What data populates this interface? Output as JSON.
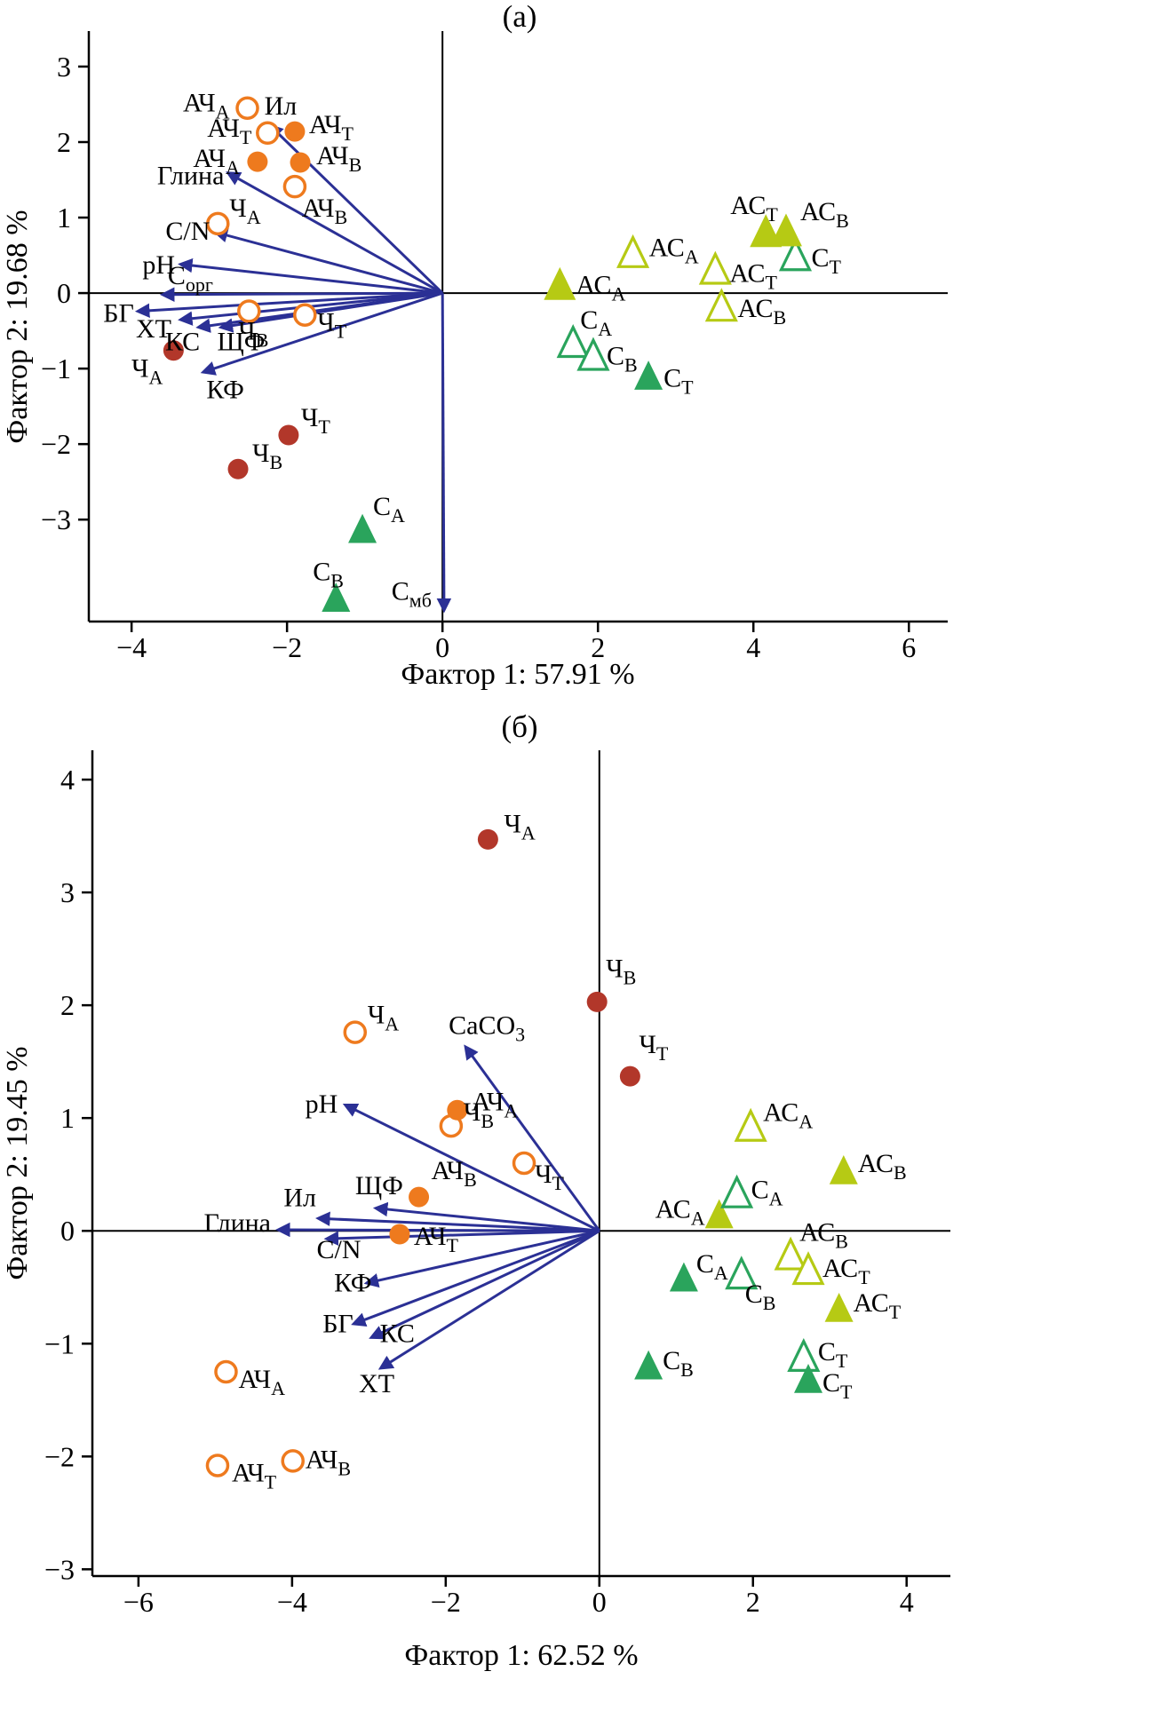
{
  "page": {
    "background": "#ffffff"
  },
  "colors": {
    "orange": "#ee7a1e",
    "dark_red": "#b2372a",
    "navy": "#2b3095",
    "yellow_green": "#b6ca14",
    "green": "#2aa45c",
    "axis": "#000000"
  },
  "chart_data": [
    {
      "type": "scatter",
      "panel_label": "(а)",
      "xlabel": "Фактор 1: 57.91 %",
      "ylabel": "Фактор 2: 19.68 %",
      "xlim": [
        -4.55,
        6.5
      ],
      "ylim": [
        -4.35,
        3.47
      ],
      "xticks": [
        -4,
        -2,
        0,
        2,
        4,
        6
      ],
      "yticks": [
        -3,
        -2,
        -1,
        0,
        1,
        2,
        3
      ],
      "grid": false,
      "legend": "none",
      "series": [
        {
          "name": "ach-filled",
          "marker": "circle",
          "filled": true,
          "color": "orange",
          "points": [
            {
              "x": -1.9,
              "y": 2.14,
              "label": "АЧ_Т",
              "dx": 16,
              "dy": 2,
              "anchor": "start"
            },
            {
              "x": -2.38,
              "y": 1.74,
              "label": "АЧ_А",
              "dx": -20,
              "dy": 6,
              "anchor": "end"
            },
            {
              "x": -1.83,
              "y": 1.73,
              "label": "АЧ_В",
              "dx": 18,
              "dy": 2,
              "anchor": "start"
            }
          ]
        },
        {
          "name": "ach-open",
          "marker": "circle",
          "filled": false,
          "color": "orange",
          "points": [
            {
              "x": -2.51,
              "y": 2.45,
              "label": "АЧ_А",
              "dx": -20,
              "dy": 4,
              "anchor": "end"
            },
            {
              "x": -2.25,
              "y": 2.12,
              "label": "АЧ_Т",
              "dx": -18,
              "dy": 4,
              "anchor": "end"
            },
            {
              "x": -1.9,
              "y": 1.41,
              "label": "АЧ_В",
              "dx": 8,
              "dy": 34,
              "anchor": "start"
            },
            {
              "x": -2.89,
              "y": 0.92,
              "label": "Ч_А",
              "dx": 13,
              "dy": -8,
              "anchor": "start"
            },
            {
              "x": -2.49,
              "y": -0.24,
              "label": "Ч_В",
              "dx": -12,
              "dy": 32,
              "anchor": "start"
            },
            {
              "x": -1.77,
              "y": -0.29,
              "label": "Ч_Т",
              "dx": 14,
              "dy": 18,
              "anchor": "start"
            }
          ]
        },
        {
          "name": "ch-filled",
          "marker": "circle",
          "filled": true,
          "color": "dark_red",
          "points": [
            {
              "x": -3.46,
              "y": -0.76,
              "label": "Ч_А",
              "dx": -12,
              "dy": 30,
              "anchor": "end"
            },
            {
              "x": -1.98,
              "y": -1.88,
              "label": "Ч_Т",
              "dx": 14,
              "dy": -10,
              "anchor": "start"
            },
            {
              "x": -2.63,
              "y": -2.33,
              "label": "Ч_В",
              "dx": 16,
              "dy": -8,
              "anchor": "start"
            }
          ]
        },
        {
          "name": "s-filled",
          "marker": "triangle",
          "filled": true,
          "color": "green",
          "points": [
            {
              "x": -1.03,
              "y": -3.15,
              "label": "С_А",
              "dx": 12,
              "dy": -18,
              "anchor": "start"
            },
            {
              "x": -1.37,
              "y": -4.06,
              "label": "С_В",
              "dx": -26,
              "dy": -22,
              "anchor": "start"
            },
            {
              "x": 2.65,
              "y": -1.12,
              "label": "С_Т",
              "dx": 17,
              "dy": 10,
              "anchor": "start"
            }
          ]
        },
        {
          "name": "s-open",
          "marker": "triangle",
          "filled": false,
          "color": "green",
          "points": [
            {
              "x": 1.68,
              "y": -0.68,
              "label": "С_А",
              "dx": 8,
              "dy": -18,
              "anchor": "start"
            },
            {
              "x": 1.94,
              "y": -0.85,
              "label": "С_В",
              "dx": 15,
              "dy": 8,
              "anchor": "start"
            },
            {
              "x": 4.54,
              "y": 0.47,
              "label": "С_Т",
              "dx": 18,
              "dy": 10,
              "anchor": "start"
            }
          ]
        },
        {
          "name": "as-filled",
          "marker": "triangle",
          "filled": true,
          "color": "yellow_green",
          "size": 18,
          "points": [
            {
              "x": 1.51,
              "y": 0.09,
              "label": "АС_А",
              "dx": 18,
              "dy": 8,
              "anchor": "start"
            },
            {
              "x": 4.16,
              "y": 0.79,
              "label": "АС_Т",
              "dx": -40,
              "dy": -22,
              "anchor": "start"
            },
            {
              "x": 4.42,
              "y": 0.8,
              "label": "АС_В",
              "dx": 16,
              "dy": -14,
              "anchor": "start"
            }
          ]
        },
        {
          "name": "as-open",
          "marker": "triangle",
          "filled": false,
          "color": "yellow_green",
          "points": [
            {
              "x": 2.45,
              "y": 0.51,
              "label": "АС_А",
              "dx": 18,
              "dy": 2,
              "anchor": "start"
            },
            {
              "x": 3.51,
              "y": 0.29,
              "label": "АС_Т",
              "dx": 16,
              "dy": 12,
              "anchor": "start"
            },
            {
              "x": 3.59,
              "y": -0.2,
              "label": "АС_В",
              "dx": 18,
              "dy": 10,
              "anchor": "start"
            }
          ]
        }
      ],
      "arrows": [
        {
          "x": -2.2,
          "y": 2.2,
          "label": "Ил",
          "dx": -8,
          "dy": -14,
          "anchor": "start"
        },
        {
          "x": -2.74,
          "y": 1.58,
          "label": "Глина",
          "dx": -6,
          "dy": 12,
          "anchor": "end"
        },
        {
          "x": -2.9,
          "y": 0.8,
          "label": "C/N",
          "dx": -8,
          "dy": 8,
          "anchor": "end"
        },
        {
          "x": -3.35,
          "y": 0.38,
          "label": "pH",
          "dx": -8,
          "dy": 10,
          "anchor": "end"
        },
        {
          "x": -3.58,
          "y": -0.02,
          "label": "С_орг",
          "dx": 4,
          "dy": -12,
          "anchor": "start"
        },
        {
          "x": -3.9,
          "y": -0.24,
          "label": "БГ",
          "dx": -6,
          "dy": 12,
          "anchor": "end"
        },
        {
          "x": -3.35,
          "y": -0.35,
          "label": "ХТ",
          "dx": -12,
          "dy": 20,
          "anchor": "end"
        },
        {
          "x": -3.12,
          "y": -0.45,
          "label": "КС",
          "dx": 0,
          "dy": 26,
          "anchor": "end"
        },
        {
          "x": -2.83,
          "y": -0.45,
          "label": "ЩФ",
          "dx": -6,
          "dy": 26,
          "anchor": "start"
        },
        {
          "x": -3.06,
          "y": -1.04,
          "label": "КФ",
          "dx": 2,
          "dy": 30,
          "anchor": "start"
        },
        {
          "x": 0.02,
          "y": -4.18,
          "label": "С_мб",
          "dx": -14,
          "dy": -10,
          "anchor": "end"
        }
      ]
    },
    {
      "type": "scatter",
      "panel_label": "(б)",
      "xlabel": "Фактор 1: 62.52 %",
      "ylabel": "Фактор 2: 19.45 %",
      "xlim": [
        -6.6,
        4.57
      ],
      "ylim": [
        -3.06,
        4.26
      ],
      "xticks": [
        -6,
        -4,
        -2,
        0,
        2,
        4
      ],
      "yticks": [
        -3,
        -2,
        -1,
        0,
        1,
        2,
        3,
        4
      ],
      "grid": false,
      "legend": "none",
      "series": [
        {
          "name": "ch-filled",
          "marker": "circle",
          "filled": true,
          "color": "dark_red",
          "points": [
            {
              "x": -1.45,
              "y": 3.47,
              "label": "Ч_А",
              "dx": 18,
              "dy": -8,
              "anchor": "start"
            },
            {
              "x": -0.03,
              "y": 2.03,
              "label": "Ч_В",
              "dx": 10,
              "dy": -28,
              "anchor": "start"
            },
            {
              "x": 0.4,
              "y": 1.37,
              "label": "Ч_Т",
              "dx": 10,
              "dy": -26,
              "anchor": "start"
            }
          ]
        },
        {
          "name": "ch-open",
          "marker": "circle",
          "filled": false,
          "color": "orange",
          "points": [
            {
              "x": -3.18,
              "y": 1.76,
              "label": "Ч_А",
              "dx": 14,
              "dy": -10,
              "anchor": "start"
            },
            {
              "x": -1.93,
              "y": 0.93,
              "label": "Ч_В",
              "dx": 14,
              "dy": -6,
              "anchor": "start"
            },
            {
              "x": -0.98,
              "y": 0.6,
              "label": "Ч_Т",
              "dx": 12,
              "dy": 22,
              "anchor": "start"
            },
            {
              "x": -4.86,
              "y": -1.25,
              "label": "АЧ_А",
              "dx": 14,
              "dy": 18,
              "anchor": "start"
            },
            {
              "x": -4.97,
              "y": -2.08,
              "label": "АЧ_Т",
              "dx": 16,
              "dy": 18,
              "anchor": "start"
            },
            {
              "x": -3.99,
              "y": -2.04,
              "label": "АЧ_В",
              "dx": 14,
              "dy": 8,
              "anchor": "start"
            }
          ]
        },
        {
          "name": "ach-filled",
          "marker": "circle",
          "filled": true,
          "color": "orange",
          "points": [
            {
              "x": -1.85,
              "y": 1.07,
              "label": "АЧ_А",
              "dx": 16,
              "dy": 0,
              "anchor": "start"
            },
            {
              "x": -2.35,
              "y": 0.3,
              "label": "АЧ_В",
              "dx": 14,
              "dy": -20,
              "anchor": "start"
            },
            {
              "x": -2.6,
              "y": -0.03,
              "label": "АЧ_Т",
              "dx": 16,
              "dy": 12,
              "anchor": "start"
            }
          ]
        },
        {
          "name": "as-filled",
          "marker": "triangle",
          "filled": true,
          "color": "yellow_green",
          "points": [
            {
              "x": 1.56,
              "y": 0.13,
              "label": "АС_А",
              "dx": -16,
              "dy": 2,
              "anchor": "end"
            },
            {
              "x": 3.18,
              "y": 0.52,
              "label": "АС_В",
              "dx": 16,
              "dy": 0,
              "anchor": "start"
            },
            {
              "x": 3.12,
              "y": -0.7,
              "label": "АС_Т",
              "dx": 16,
              "dy": 2,
              "anchor": "start"
            }
          ]
        },
        {
          "name": "as-open",
          "marker": "triangle",
          "filled": false,
          "color": "yellow_green",
          "points": [
            {
              "x": 1.97,
              "y": 0.91,
              "label": "АС_А",
              "dx": 14,
              "dy": -8,
              "anchor": "start"
            },
            {
              "x": 2.49,
              "y": -0.23,
              "label": "АС_В",
              "dx": 10,
              "dy": -18,
              "anchor": "start"
            },
            {
              "x": 2.72,
              "y": -0.36,
              "label": "АС_Т",
              "dx": 16,
              "dy": 6,
              "anchor": "start"
            }
          ]
        },
        {
          "name": "s-open",
          "marker": "triangle",
          "filled": false,
          "color": "green",
          "points": [
            {
              "x": 1.79,
              "y": 0.32,
              "label": "С_А",
              "dx": 16,
              "dy": 4,
              "anchor": "start"
            },
            {
              "x": 1.85,
              "y": -0.4,
              "label": "С_В",
              "dx": 4,
              "dy": 30,
              "anchor": "start"
            },
            {
              "x": 2.66,
              "y": -1.13,
              "label": "С_Т",
              "dx": 16,
              "dy": 2,
              "anchor": "start"
            }
          ]
        },
        {
          "name": "s-filled",
          "marker": "triangle",
          "filled": true,
          "color": "green",
          "points": [
            {
              "x": 1.1,
              "y": -0.43,
              "label": "С_А",
              "dx": 14,
              "dy": -8,
              "anchor": "start"
            },
            {
              "x": 0.64,
              "y": -1.21,
              "label": "С_В",
              "dx": 16,
              "dy": 2,
              "anchor": "start"
            },
            {
              "x": 2.72,
              "y": -1.33,
              "label": "С_Т",
              "dx": 16,
              "dy": 12,
              "anchor": "start"
            }
          ]
        }
      ],
      "arrows": [
        {
          "x": -1.73,
          "y": 1.62,
          "label": "CaCO_3",
          "dx": -20,
          "dy": -16,
          "anchor": "start"
        },
        {
          "x": -3.29,
          "y": 1.11,
          "label": "pH",
          "dx": -10,
          "dy": 8,
          "anchor": "end"
        },
        {
          "x": -4.16,
          "y": 0.01,
          "label": "Глина",
          "dx": -10,
          "dy": 2,
          "anchor": "end"
        },
        {
          "x": -3.64,
          "y": 0.11,
          "label": "Ил",
          "dx": -4,
          "dy": -14,
          "anchor": "end"
        },
        {
          "x": -2.89,
          "y": 0.2,
          "label": "ЩФ",
          "dx": 2,
          "dy": -16,
          "anchor": "middle"
        },
        {
          "x": -3.53,
          "y": -0.07,
          "label": "C/N",
          "dx": 12,
          "dy": 22,
          "anchor": "middle"
        },
        {
          "x": -3.01,
          "y": -0.46,
          "label": "КФ",
          "dx": 4,
          "dy": 10,
          "anchor": "end"
        },
        {
          "x": -3.18,
          "y": -0.82,
          "label": "БГ",
          "dx": -2,
          "dy": 10,
          "anchor": "end"
        },
        {
          "x": -2.95,
          "y": -0.94,
          "label": "КС",
          "dx": 8,
          "dy": 6,
          "anchor": "start"
        },
        {
          "x": -2.83,
          "y": -1.21,
          "label": "ХТ",
          "dx": -6,
          "dy": 28,
          "anchor": "middle"
        }
      ]
    }
  ]
}
